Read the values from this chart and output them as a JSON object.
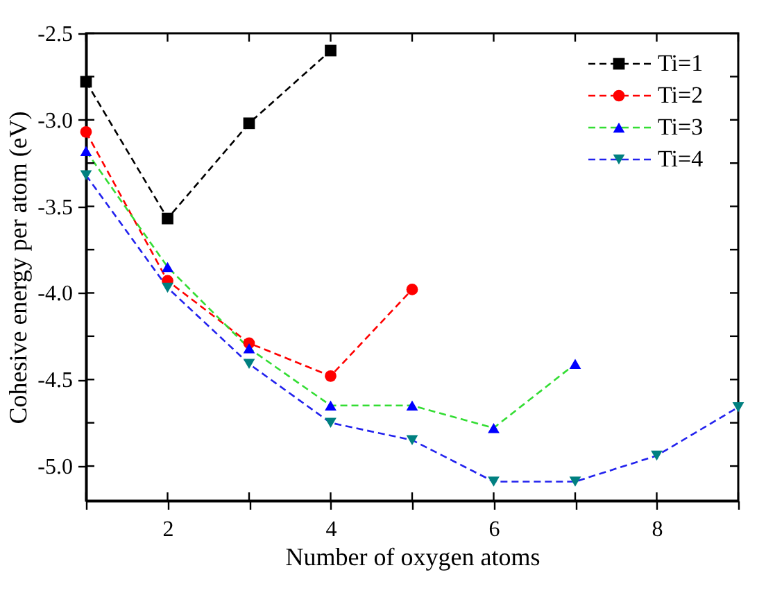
{
  "chart_data": {
    "type": "line",
    "xlabel": "Number of oxygen atoms",
    "ylabel": "Cohesive energy per atom (eV)",
    "xlim": [
      1,
      9
    ],
    "xticks": [
      {
        "value": 1,
        "label": null
      },
      2,
      {
        "value": 3,
        "label": null
      },
      4,
      {
        "value": 5,
        "label": null
      },
      6,
      {
        "value": 7,
        "label": null
      },
      8,
      {
        "value": 9,
        "label": null
      }
    ],
    "ylim": [
      -5.2,
      -2.5
    ],
    "yticks": [
      {
        "value": -2.5,
        "label": "-2.5"
      },
      {
        "value": -2.75,
        "label": null
      },
      {
        "value": -3,
        "label": "-3.0"
      },
      {
        "value": -3.25,
        "label": null
      },
      {
        "value": -3.5,
        "label": "-3.5"
      },
      {
        "value": -3.75,
        "label": null
      },
      {
        "value": -4,
        "label": "-4.0"
      },
      {
        "value": -4.25,
        "label": null
      },
      {
        "value": -4.5,
        "label": "-4.5"
      },
      {
        "value": -4.75,
        "label": null
      },
      {
        "value": -5,
        "label": "-5.0"
      }
    ],
    "line_style": "dashed",
    "legend": "top right",
    "grid": false,
    "series": [
      {
        "name": "Ti=1",
        "color": "#000000",
        "marker": "square",
        "x": [
          1,
          2,
          3,
          4
        ],
        "values": [
          -2.78,
          -3.57,
          -3.02,
          -2.6
        ],
        "colors": [
          "#000000",
          "#000000",
          "#000000",
          "#000000"
        ]
      },
      {
        "name": "Ti=2",
        "color": "#ff0000",
        "marker": "circle",
        "x": [
          1,
          2,
          3,
          4,
          5
        ],
        "values": [
          -3.07,
          -3.93,
          -4.29,
          -4.48,
          -3.98
        ],
        "colors": [
          "#ff0000",
          "#ff0000",
          "#ff0000",
          "#ff0000",
          "#ff0000"
        ]
      },
      {
        "name": "Ti=3",
        "color": "#33dd33",
        "marker": "triangle",
        "x": [
          1,
          2,
          3,
          4,
          5,
          6,
          7
        ],
        "values": [
          -3.18,
          -3.85,
          -4.32,
          -4.65,
          -4.65,
          -4.78,
          -4.41
        ],
        "colors": [
          "#0000ff",
          "#0000ff",
          "#0000ff",
          "#0000ff",
          "#0000ff",
          "#0000ff",
          "#0000ff"
        ]
      },
      {
        "name": "Ti=4",
        "color": "#2222ee",
        "marker": "triangle-down",
        "x": [
          1,
          2,
          3,
          4,
          5,
          6,
          7,
          8,
          9
        ],
        "values": [
          -3.32,
          -3.97,
          -4.41,
          -4.75,
          -4.85,
          -5.09,
          -5.09,
          -4.94,
          -4.66
        ],
        "colors": [
          "#008080",
          "#008080",
          "#008080",
          "#008080",
          "#008080",
          "#008080",
          "#008080",
          "#008080",
          "#008080"
        ]
      }
    ]
  }
}
